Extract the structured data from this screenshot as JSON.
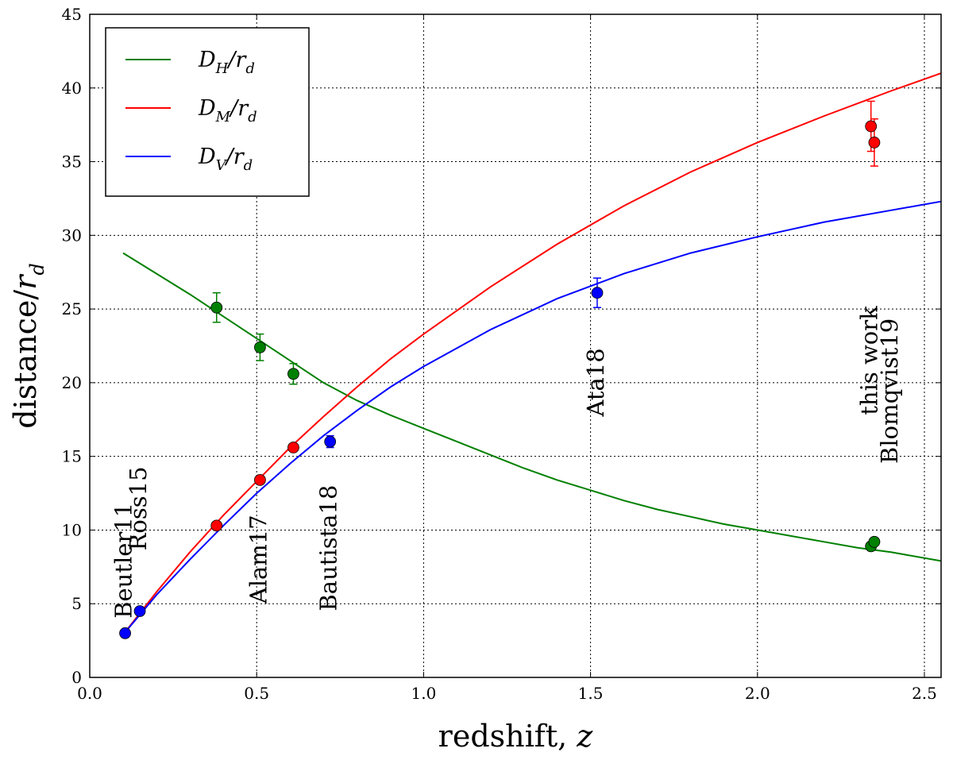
{
  "chart_data": {
    "type": "line",
    "xlabel": "redshift, z",
    "ylabel": "distance/r_d",
    "xlim": [
      0.0,
      2.55
    ],
    "ylim": [
      0,
      45
    ],
    "xticks": [
      "0.0",
      "0.5",
      "1.0",
      "1.5",
      "2.0",
      "2.5"
    ],
    "yticks": [
      "0",
      "5",
      "10",
      "15",
      "20",
      "25",
      "30",
      "35",
      "40",
      "45"
    ],
    "grid": true,
    "legend_position": "top-left",
    "series": [
      {
        "name": "D_H/r_d",
        "legend_main": "D",
        "legend_sub": "H",
        "legend_tail": "/r",
        "legend_sub2": "d",
        "color": "#008000",
        "curve": {
          "x": [
            0.1,
            0.2,
            0.3,
            0.4,
            0.5,
            0.6,
            0.7,
            0.8,
            0.9,
            1.0,
            1.1,
            1.2,
            1.3,
            1.4,
            1.5,
            1.6,
            1.7,
            1.8,
            1.9,
            2.0,
            2.1,
            2.2,
            2.3,
            2.4,
            2.55
          ],
          "y": [
            28.8,
            27.4,
            26.0,
            24.5,
            23.0,
            21.5,
            20.0,
            18.8,
            17.8,
            16.9,
            16.0,
            15.1,
            14.2,
            13.4,
            12.7,
            12.0,
            11.4,
            10.9,
            10.4,
            10.0,
            9.6,
            9.2,
            8.8,
            8.5,
            7.9
          ]
        },
        "points": [
          {
            "x": 0.38,
            "y": 25.1,
            "err": 1.0
          },
          {
            "x": 0.51,
            "y": 22.4,
            "err": 0.9
          },
          {
            "x": 0.61,
            "y": 20.6,
            "err": 0.7
          },
          {
            "x": 2.34,
            "y": 8.9,
            "err": 0.2
          },
          {
            "x": 2.35,
            "y": 9.2,
            "err": 0.2
          }
        ]
      },
      {
        "name": "D_M/r_d",
        "legend_main": "D",
        "legend_sub": "M",
        "legend_tail": "/r",
        "legend_sub2": "d",
        "color": "#ff0000",
        "curve": {
          "x": [
            0.1,
            0.2,
            0.3,
            0.4,
            0.5,
            0.6,
            0.7,
            0.8,
            0.9,
            1.0,
            1.2,
            1.4,
            1.6,
            1.8,
            2.0,
            2.2,
            2.4,
            2.55
          ],
          "y": [
            2.9,
            5.8,
            8.5,
            11.0,
            13.3,
            15.6,
            17.7,
            19.7,
            21.6,
            23.3,
            26.5,
            29.4,
            32.0,
            34.3,
            36.3,
            38.1,
            39.8,
            41.0
          ]
        },
        "points": [
          {
            "x": 0.38,
            "y": 10.3,
            "err": 0.15
          },
          {
            "x": 0.51,
            "y": 13.4,
            "err": 0.2
          },
          {
            "x": 0.61,
            "y": 15.6,
            "err": 0.25
          },
          {
            "x": 2.34,
            "y": 37.4,
            "err": 1.7
          },
          {
            "x": 2.35,
            "y": 36.3,
            "err": 1.6
          }
        ]
      },
      {
        "name": "D_V/r_d",
        "legend_main": "D",
        "legend_sub": "V",
        "legend_tail": "/r",
        "legend_sub2": "d",
        "color": "#0000ff",
        "curve": {
          "x": [
            0.1,
            0.2,
            0.3,
            0.4,
            0.5,
            0.6,
            0.7,
            0.8,
            0.9,
            1.0,
            1.2,
            1.4,
            1.6,
            1.8,
            2.0,
            2.2,
            2.4,
            2.55
          ],
          "y": [
            2.9,
            5.6,
            8.0,
            10.3,
            12.5,
            14.5,
            16.4,
            18.1,
            19.7,
            21.1,
            23.6,
            25.7,
            27.4,
            28.8,
            29.9,
            30.9,
            31.7,
            32.3
          ]
        },
        "points": [
          {
            "x": 0.106,
            "y": 3.0,
            "err": 0.15
          },
          {
            "x": 0.15,
            "y": 4.5,
            "err": 0.15
          },
          {
            "x": 0.72,
            "y": 16.0,
            "err": 0.4
          },
          {
            "x": 1.52,
            "y": 26.1,
            "err": 1.0
          }
        ]
      }
    ],
    "annotations": [
      {
        "text": "Beutler11",
        "x": 0.106,
        "y": 4.0
      },
      {
        "text": "Ross15",
        "x": 0.15,
        "y": 8.6
      },
      {
        "text": "Alam17",
        "x": 0.51,
        "y": 5.0
      },
      {
        "text": "Bautista18",
        "x": 0.72,
        "y": 4.5
      },
      {
        "text": "Ata18",
        "x": 1.52,
        "y": 17.7
      },
      {
        "text": "this work",
        "x": 2.34,
        "y": 17.8
      },
      {
        "text": "Blomqvist19",
        "x": 2.4,
        "y": 14.5
      }
    ]
  }
}
